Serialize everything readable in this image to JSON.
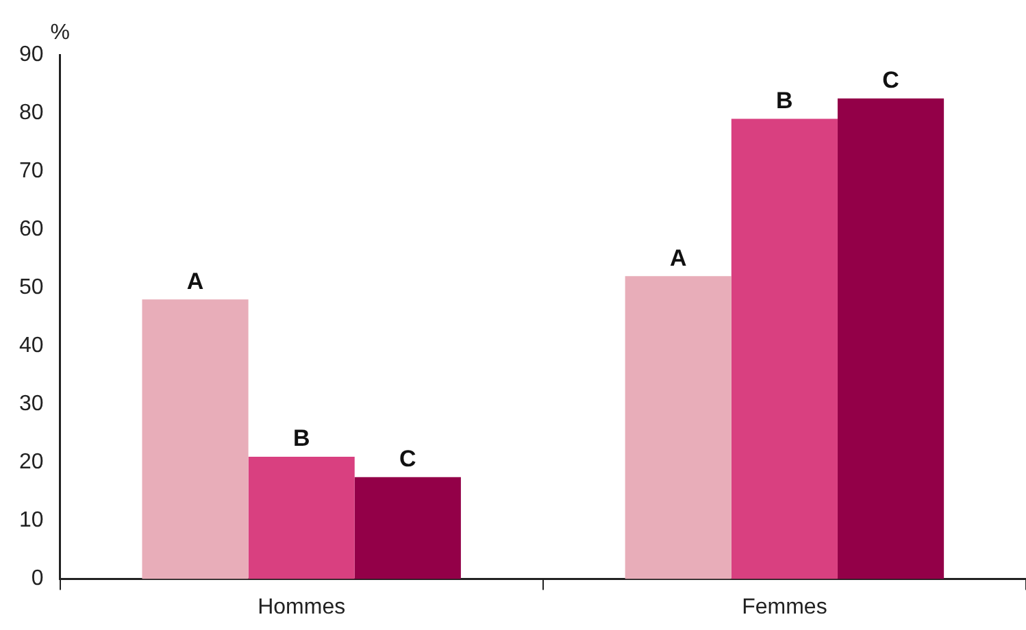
{
  "chart_data": {
    "type": "bar",
    "ylabel": "%",
    "categories": [
      "Hommes",
      "Femmes"
    ],
    "series": [
      {
        "name": "A",
        "color": "#e8adb9",
        "values": [
          48,
          52
        ]
      },
      {
        "name": "B",
        "color": "#d94080",
        "values": [
          21,
          79
        ]
      },
      {
        "name": "C",
        "color": "#930048",
        "values": [
          17.5,
          82.5
        ]
      }
    ],
    "ylim": [
      0,
      90
    ],
    "yticks": [
      0,
      10,
      20,
      30,
      40,
      50,
      60,
      70,
      80,
      90
    ],
    "grid": false,
    "legend": false
  }
}
